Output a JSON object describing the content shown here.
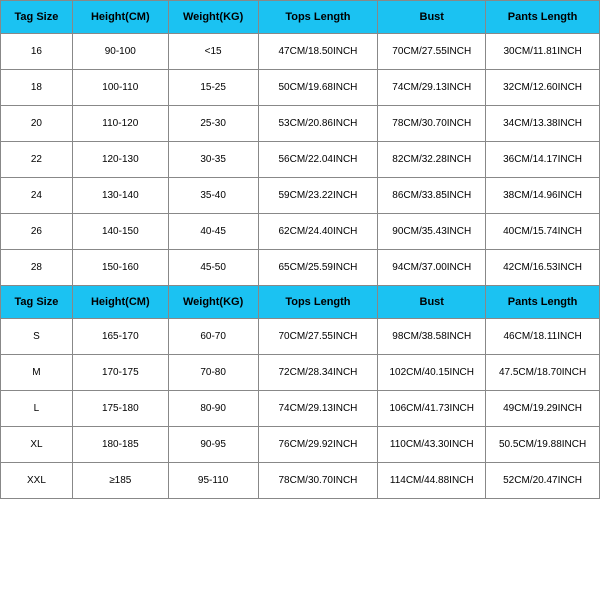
{
  "table": {
    "header_bg": "#1bc2f2",
    "border_color": "#888888",
    "cell_bg": "#ffffff",
    "header_fontsize": 11,
    "cell_fontsize": 10,
    "columns": [
      {
        "key": "tag",
        "label": "Tag Size",
        "width": "12%"
      },
      {
        "key": "height",
        "label": "Height(CM)",
        "width": "16%"
      },
      {
        "key": "weight",
        "label": "Weight(KG)",
        "width": "15%"
      },
      {
        "key": "tops",
        "label": "Tops Length",
        "width": "20%"
      },
      {
        "key": "bust",
        "label": "Bust",
        "width": "18%"
      },
      {
        "key": "pants",
        "label": "Pants Length",
        "width": "19%"
      }
    ],
    "section1_rows": [
      {
        "tag": "16",
        "height": "90-100",
        "weight": "<15",
        "tops": "47CM/18.50INCH",
        "bust": "70CM/27.55INCH",
        "pants": "30CM/11.81INCH"
      },
      {
        "tag": "18",
        "height": "100-110",
        "weight": "15-25",
        "tops": "50CM/19.68INCH",
        "bust": "74CM/29.13INCH",
        "pants": "32CM/12.60INCH"
      },
      {
        "tag": "20",
        "height": "110-120",
        "weight": "25-30",
        "tops": "53CM/20.86INCH",
        "bust": "78CM/30.70INCH",
        "pants": "34CM/13.38INCH"
      },
      {
        "tag": "22",
        "height": "120-130",
        "weight": "30-35",
        "tops": "56CM/22.04INCH",
        "bust": "82CM/32.28INCH",
        "pants": "36CM/14.17INCH"
      },
      {
        "tag": "24",
        "height": "130-140",
        "weight": "35-40",
        "tops": "59CM/23.22INCH",
        "bust": "86CM/33.85INCH",
        "pants": "38CM/14.96INCH"
      },
      {
        "tag": "26",
        "height": "140-150",
        "weight": "40-45",
        "tops": "62CM/24.40INCH",
        "bust": "90CM/35.43INCH",
        "pants": "40CM/15.74INCH"
      },
      {
        "tag": "28",
        "height": "150-160",
        "weight": "45-50",
        "tops": "65CM/25.59INCH",
        "bust": "94CM/37.00INCH",
        "pants": "42CM/16.53INCH"
      }
    ],
    "section2_rows": [
      {
        "tag": "S",
        "height": "165-170",
        "weight": "60-70",
        "tops": "70CM/27.55INCH",
        "bust": "98CM/38.58INCH",
        "pants": "46CM/18.11INCH"
      },
      {
        "tag": "M",
        "height": "170-175",
        "weight": "70-80",
        "tops": "72CM/28.34INCH",
        "bust": "102CM/40.15INCH",
        "pants": "47.5CM/18.70INCH"
      },
      {
        "tag": "L",
        "height": "175-180",
        "weight": "80-90",
        "tops": "74CM/29.13INCH",
        "bust": "106CM/41.73INCH",
        "pants": "49CM/19.29INCH"
      },
      {
        "tag": "XL",
        "height": "180-185",
        "weight": "90-95",
        "tops": "76CM/29.92INCH",
        "bust": "110CM/43.30INCH",
        "pants": "50.5CM/19.88INCH"
      },
      {
        "tag": "XXL",
        "height": "≥185",
        "weight": "95-110",
        "tops": "78CM/30.70INCH",
        "bust": "114CM/44.88INCH",
        "pants": "52CM/20.47INCH"
      }
    ]
  }
}
